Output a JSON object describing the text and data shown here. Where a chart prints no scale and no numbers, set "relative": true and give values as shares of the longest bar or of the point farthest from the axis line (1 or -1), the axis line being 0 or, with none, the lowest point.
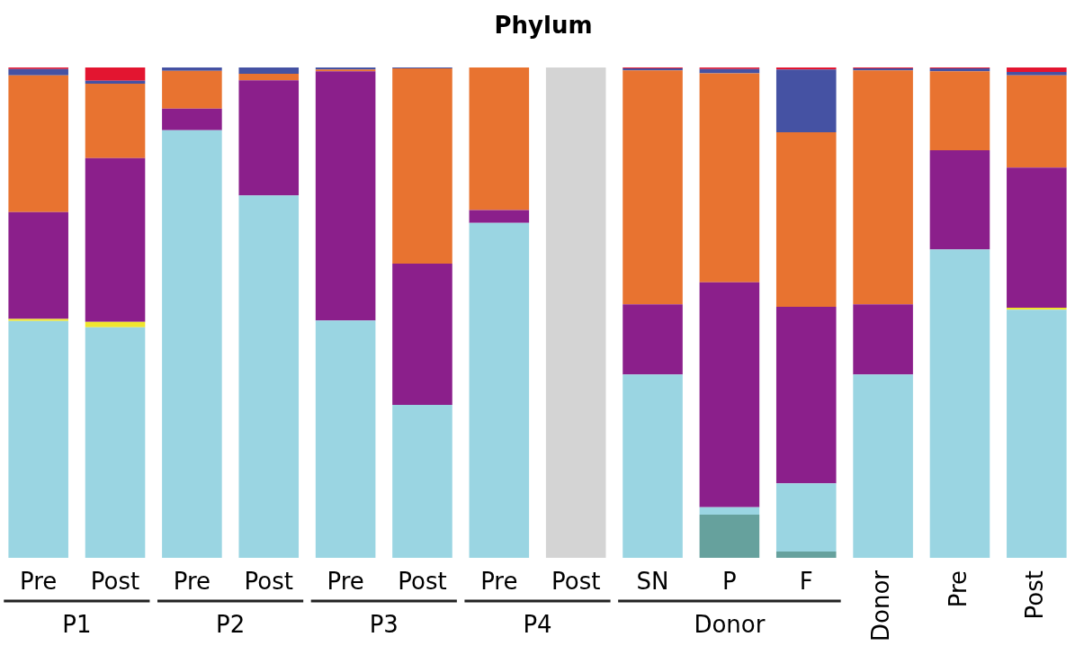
{
  "chart_data": {
    "type": "bar",
    "title": "Phylum",
    "stacked": true,
    "relative": true,
    "legend": false,
    "categories": [
      "Pre",
      "Post",
      "Pre",
      "Post",
      "Pre",
      "Post",
      "Pre",
      "Post",
      "SN",
      "P",
      "F",
      "Donor",
      "Pre",
      "Post"
    ],
    "annotations": [
      "P1",
      "P2",
      "P3",
      "P4",
      "Donor"
    ],
    "series": [
      {
        "color": "#66a19d",
        "values": [
          null,
          null,
          null,
          null,
          null,
          null,
          null,
          null,
          null,
          0.088,
          0.013,
          null,
          null,
          null
        ]
      },
      {
        "color": "#9ad5e2",
        "values": [
          0.483,
          0.47,
          0.872,
          0.739,
          0.484,
          0.312,
          0.683,
          null,
          0.374,
          0.015,
          0.139,
          0.374,
          0.629,
          0.506
        ]
      },
      {
        "color": "#f0e62e",
        "values": [
          0.004,
          0.011,
          null,
          null,
          null,
          null,
          null,
          null,
          null,
          null,
          null,
          null,
          null,
          0.004
        ]
      },
      {
        "color": "#8b1f8b",
        "values": [
          0.218,
          0.334,
          0.044,
          0.235,
          0.508,
          0.288,
          0.026,
          null,
          0.143,
          0.459,
          0.36,
          0.143,
          0.202,
          0.286
        ]
      },
      {
        "color": "#e87330",
        "values": [
          0.279,
          0.152,
          0.077,
          0.013,
          0.004,
          0.398,
          0.291,
          null,
          0.477,
          0.426,
          0.356,
          0.477,
          0.161,
          0.188
        ]
      },
      {
        "color": "#4552a3",
        "values": [
          0.013,
          0.006,
          0.007,
          0.013,
          0.004,
          0.002,
          null,
          null,
          0.004,
          0.009,
          0.128,
          0.004,
          0.006,
          0.007
        ]
      },
      {
        "color": "#e31530",
        "values": [
          0.003,
          0.027,
          null,
          null,
          null,
          null,
          null,
          null,
          0.002,
          0.003,
          0.004,
          0.002,
          0.002,
          0.009
        ]
      },
      {
        "color": "#d4d4d4",
        "values": [
          null,
          null,
          null,
          null,
          null,
          null,
          null,
          1,
          null,
          null,
          null,
          null,
          null,
          null
        ]
      }
    ]
  }
}
